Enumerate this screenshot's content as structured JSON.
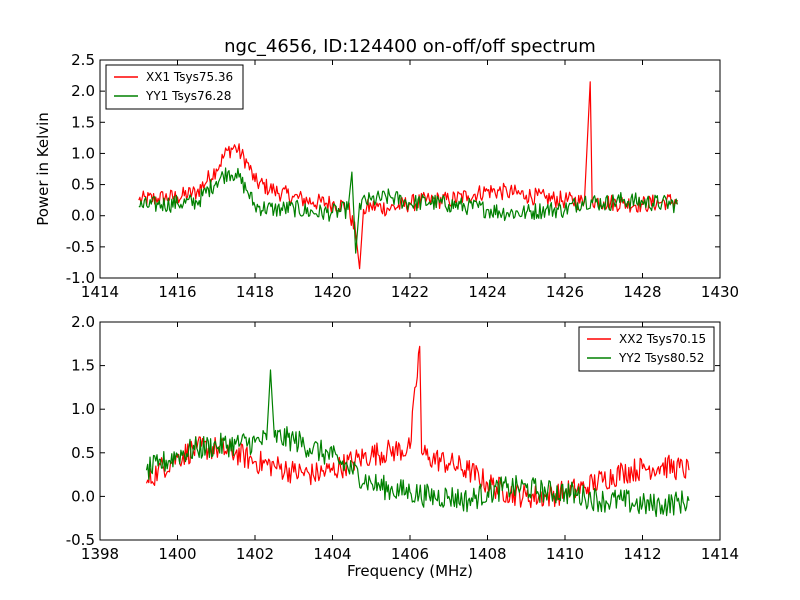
{
  "chart_data": [
    {
      "type": "line",
      "title": "ngc_4656, ID:124400 on-off/off spectrum",
      "xlabel": "",
      "ylabel": "Power in Kelvin",
      "xlim": [
        1414,
        1430
      ],
      "ylim": [
        -1.0,
        2.5
      ],
      "x_ticks": [
        "1414",
        "1416",
        "1418",
        "1420",
        "1422",
        "1424",
        "1426",
        "1428",
        "1430"
      ],
      "y_ticks": [
        "-1.0",
        "-0.5",
        "0.0",
        "0.5",
        "1.0",
        "1.5",
        "2.0",
        "2.5"
      ],
      "legend_position": "top-left",
      "series": [
        {
          "name": "XX1 Tsys75.36",
          "color": "#ff0000",
          "points": [
            [
              1415.0,
              0.25
            ],
            [
              1415.5,
              0.28
            ],
            [
              1416.0,
              0.3
            ],
            [
              1416.5,
              0.38
            ],
            [
              1417.0,
              0.75
            ],
            [
              1417.3,
              1.05
            ],
            [
              1417.5,
              1.1
            ],
            [
              1417.8,
              0.85
            ],
            [
              1418.0,
              0.55
            ],
            [
              1418.5,
              0.4
            ],
            [
              1419.0,
              0.3
            ],
            [
              1419.5,
              0.22
            ],
            [
              1420.0,
              0.2
            ],
            [
              1420.4,
              0.15
            ],
            [
              1420.6,
              -0.3
            ],
            [
              1420.7,
              -0.85
            ],
            [
              1420.8,
              0.1
            ],
            [
              1421.0,
              0.15
            ],
            [
              1421.5,
              0.12
            ],
            [
              1422.0,
              0.2
            ],
            [
              1422.5,
              0.25
            ],
            [
              1423.0,
              0.25
            ],
            [
              1423.5,
              0.32
            ],
            [
              1424.0,
              0.4
            ],
            [
              1424.5,
              0.38
            ],
            [
              1425.0,
              0.33
            ],
            [
              1425.5,
              0.28
            ],
            [
              1426.0,
              0.25
            ],
            [
              1426.5,
              0.22
            ],
            [
              1426.65,
              2.15
            ],
            [
              1426.7,
              0.25
            ],
            [
              1427.0,
              0.22
            ],
            [
              1427.5,
              0.2
            ],
            [
              1428.0,
              0.18
            ],
            [
              1428.5,
              0.22
            ],
            [
              1428.9,
              0.25
            ]
          ]
        },
        {
          "name": "YY1 Tsys76.28",
          "color": "#008000",
          "points": [
            [
              1415.0,
              0.15
            ],
            [
              1415.5,
              0.18
            ],
            [
              1416.0,
              0.2
            ],
            [
              1416.5,
              0.22
            ],
            [
              1417.0,
              0.55
            ],
            [
              1417.3,
              0.7
            ],
            [
              1417.5,
              0.68
            ],
            [
              1417.8,
              0.4
            ],
            [
              1418.0,
              0.15
            ],
            [
              1418.5,
              0.1
            ],
            [
              1419.0,
              0.12
            ],
            [
              1419.5,
              0.05
            ],
            [
              1420.0,
              0.05
            ],
            [
              1420.4,
              0.1
            ],
            [
              1420.5,
              0.7
            ],
            [
              1420.6,
              -0.6
            ],
            [
              1420.7,
              0.2
            ],
            [
              1421.0,
              0.25
            ],
            [
              1421.5,
              0.3
            ],
            [
              1422.0,
              0.2
            ],
            [
              1422.5,
              0.22
            ],
            [
              1423.0,
              0.18
            ],
            [
              1423.5,
              0.15
            ],
            [
              1424.0,
              0.1
            ],
            [
              1424.5,
              0.05
            ],
            [
              1425.0,
              0.05
            ],
            [
              1425.5,
              0.1
            ],
            [
              1426.0,
              0.1
            ],
            [
              1426.5,
              0.25
            ],
            [
              1427.0,
              0.2
            ],
            [
              1427.5,
              0.25
            ],
            [
              1428.0,
              0.22
            ],
            [
              1428.5,
              0.2
            ],
            [
              1428.9,
              0.18
            ]
          ]
        }
      ]
    },
    {
      "type": "line",
      "title": "",
      "xlabel": "Frequency (MHz)",
      "ylabel": "",
      "xlim": [
        1398,
        1414
      ],
      "ylim": [
        -0.5,
        2.0
      ],
      "x_ticks": [
        "1398",
        "1400",
        "1402",
        "1404",
        "1406",
        "1408",
        "1410",
        "1412",
        "1414"
      ],
      "y_ticks": [
        "-0.5",
        "0.0",
        "0.5",
        "1.0",
        "1.5",
        "2.0"
      ],
      "legend_position": "top-right",
      "series": [
        {
          "name": "XX2 Tsys70.15",
          "color": "#ff0000",
          "points": [
            [
              1399.2,
              0.15
            ],
            [
              1399.5,
              0.3
            ],
            [
              1400.0,
              0.45
            ],
            [
              1400.5,
              0.55
            ],
            [
              1401.0,
              0.55
            ],
            [
              1401.5,
              0.5
            ],
            [
              1402.0,
              0.4
            ],
            [
              1402.5,
              0.35
            ],
            [
              1403.0,
              0.28
            ],
            [
              1403.5,
              0.25
            ],
            [
              1404.0,
              0.3
            ],
            [
              1404.5,
              0.4
            ],
            [
              1405.0,
              0.48
            ],
            [
              1405.5,
              0.52
            ],
            [
              1406.0,
              0.55
            ],
            [
              1406.25,
              1.72
            ],
            [
              1406.3,
              0.5
            ],
            [
              1406.5,
              0.45
            ],
            [
              1407.0,
              0.38
            ],
            [
              1407.5,
              0.3
            ],
            [
              1408.0,
              0.15
            ],
            [
              1408.5,
              0.05
            ],
            [
              1409.0,
              0.0
            ],
            [
              1409.5,
              0.0
            ],
            [
              1410.0,
              0.05
            ],
            [
              1410.5,
              0.1
            ],
            [
              1411.0,
              0.2
            ],
            [
              1411.5,
              0.28
            ],
            [
              1412.0,
              0.32
            ],
            [
              1412.5,
              0.35
            ],
            [
              1413.2,
              0.3
            ]
          ]
        },
        {
          "name": "YY2 Tsys80.52",
          "color": "#008000",
          "points": [
            [
              1399.2,
              0.3
            ],
            [
              1399.5,
              0.35
            ],
            [
              1400.0,
              0.48
            ],
            [
              1400.5,
              0.55
            ],
            [
              1401.0,
              0.58
            ],
            [
              1401.5,
              0.6
            ],
            [
              1402.0,
              0.62
            ],
            [
              1402.3,
              0.65
            ],
            [
              1402.4,
              1.45
            ],
            [
              1402.5,
              0.68
            ],
            [
              1403.0,
              0.65
            ],
            [
              1403.5,
              0.55
            ],
            [
              1404.0,
              0.45
            ],
            [
              1404.5,
              0.3
            ],
            [
              1405.0,
              0.15
            ],
            [
              1405.5,
              0.08
            ],
            [
              1406.0,
              0.05
            ],
            [
              1406.5,
              0.0
            ],
            [
              1407.0,
              0.0
            ],
            [
              1407.5,
              -0.05
            ],
            [
              1408.0,
              0.05
            ],
            [
              1408.5,
              0.1
            ],
            [
              1409.0,
              0.1
            ],
            [
              1409.5,
              0.05
            ],
            [
              1410.0,
              0.05
            ],
            [
              1410.5,
              0.0
            ],
            [
              1411.0,
              -0.05
            ],
            [
              1411.5,
              -0.05
            ],
            [
              1412.0,
              -0.1
            ],
            [
              1412.5,
              -0.1
            ],
            [
              1413.2,
              -0.05
            ]
          ]
        }
      ]
    }
  ]
}
